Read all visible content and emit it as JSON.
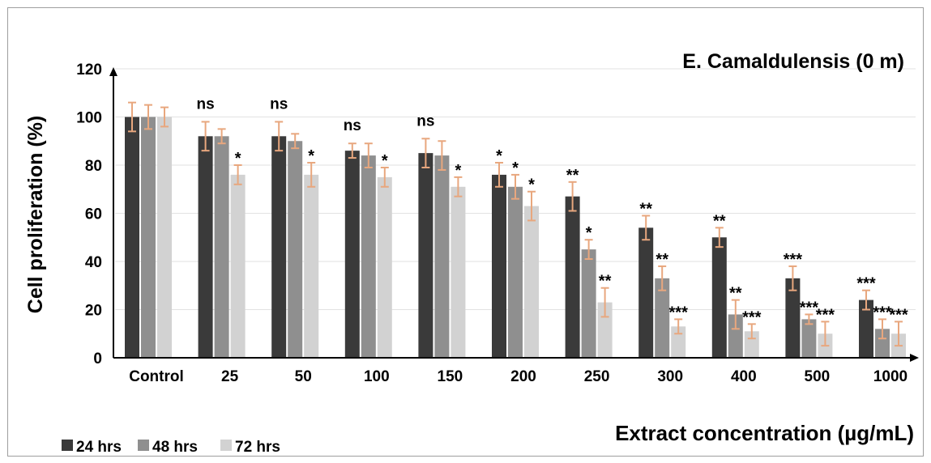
{
  "chart_data": {
    "type": "bar",
    "title": "E. Camaldulensis (0 m)",
    "xlabel": "Extract concentration (µg/mL)",
    "ylabel": "Cell proliferation (%)",
    "ylim": [
      0,
      120
    ],
    "yticks": [
      0,
      20,
      40,
      60,
      80,
      100,
      120
    ],
    "grid": true,
    "legend_position": "bottom-left",
    "categories": [
      "Control",
      "25",
      "50",
      "100",
      "150",
      "200",
      "250",
      "300",
      "400",
      "500",
      "1000"
    ],
    "series": [
      {
        "name": "24 hrs",
        "color": "#3a3a3a",
        "values": [
          100,
          92,
          92,
          86,
          85,
          76,
          67,
          54,
          50,
          33,
          24
        ],
        "errors": [
          6,
          6,
          6,
          3,
          6,
          5,
          6,
          5,
          4,
          5,
          4
        ],
        "labels": [
          "",
          "ns",
          "ns",
          "ns",
          "ns",
          "*",
          "**",
          "**",
          "**",
          "***",
          "***"
        ]
      },
      {
        "name": "48 hrs",
        "color": "#8f8f8f",
        "values": [
          100,
          92,
          90,
          84,
          84,
          71,
          45,
          33,
          18,
          16,
          12
        ],
        "errors": [
          5,
          3,
          3,
          5,
          6,
          5,
          4,
          5,
          6,
          2,
          4
        ],
        "labels": [
          "",
          "",
          "",
          "",
          "",
          "*",
          "*",
          "**",
          "**",
          "***",
          "***"
        ]
      },
      {
        "name": "72 hrs",
        "color": "#d2d2d2",
        "values": [
          100,
          76,
          76,
          75,
          71,
          63,
          23,
          13,
          11,
          10,
          10
        ],
        "errors": [
          4,
          4,
          5,
          4,
          4,
          6,
          6,
          3,
          3,
          5,
          5
        ],
        "labels": [
          "",
          "*",
          "*",
          "*",
          "*",
          "*",
          "**",
          "***",
          "***",
          "***",
          "***"
        ]
      }
    ],
    "error_bar_color": "#e8a77e"
  }
}
